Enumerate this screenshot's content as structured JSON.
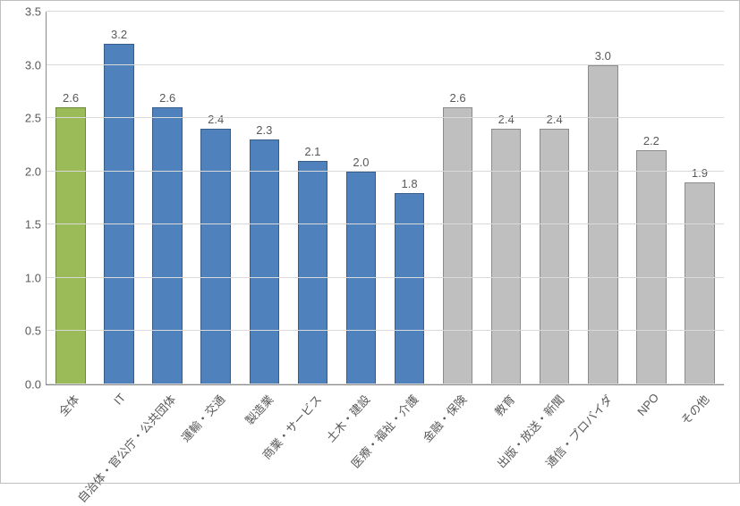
{
  "chart": {
    "type": "bar",
    "title": "",
    "ylim": [
      0.0,
      3.5
    ],
    "ytick_step": 0.5,
    "ytick_decimals": 1,
    "background_color": "#ffffff",
    "border_color": "#bfbfbf",
    "grid_color": "#d9d9d9",
    "axis_color": "#8a8a8a",
    "tick_font_color": "#595959",
    "tick_font_size": 13,
    "data_label_font_size": 13,
    "data_label_color": "#595959",
    "data_label_decimals": 1,
    "xlabel_rotation_deg": -48,
    "bar_width_ratio": 0.62,
    "colors": {
      "green_fill": "#9bbb59",
      "green_stroke": "#71893f",
      "blue_fill": "#4f81bd",
      "blue_stroke": "#385d8a",
      "gray_fill": "#bfbfbf",
      "gray_stroke": "#8c8c8c"
    },
    "categories": [
      {
        "label": "全体",
        "value": 2.6,
        "color": "green"
      },
      {
        "label": "IT",
        "value": 3.2,
        "color": "blue"
      },
      {
        "label": "自治体・官公庁・公共団体",
        "value": 2.6,
        "color": "blue"
      },
      {
        "label": "運輸・交通",
        "value": 2.4,
        "color": "blue"
      },
      {
        "label": "製造業",
        "value": 2.3,
        "color": "blue"
      },
      {
        "label": "商業・サービス",
        "value": 2.1,
        "color": "blue"
      },
      {
        "label": "土木・建設",
        "value": 2.0,
        "color": "blue"
      },
      {
        "label": "医療・福祉・介護",
        "value": 1.8,
        "color": "blue"
      },
      {
        "label": "金融・保険",
        "value": 2.6,
        "color": "gray"
      },
      {
        "label": "教育",
        "value": 2.4,
        "color": "gray"
      },
      {
        "label": "出版・放送・新聞",
        "value": 2.4,
        "color": "gray"
      },
      {
        "label": "通信・プロバイダ",
        "value": 3.0,
        "color": "gray"
      },
      {
        "label": "NPO",
        "value": 2.2,
        "color": "gray"
      },
      {
        "label": "その他",
        "value": 1.9,
        "color": "gray"
      }
    ]
  }
}
